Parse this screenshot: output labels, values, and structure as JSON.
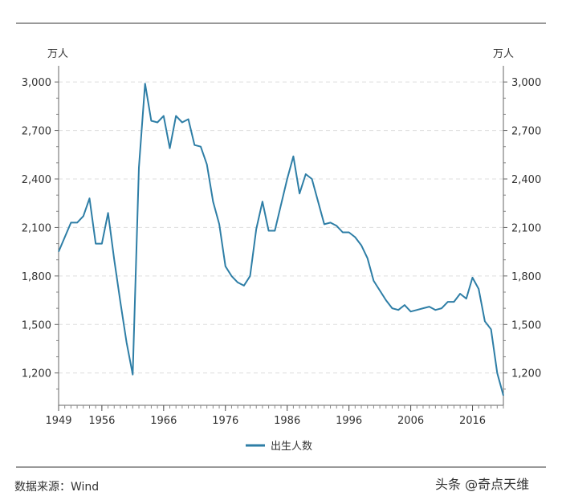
{
  "chart_data": {
    "type": "line",
    "unit_left": "万人",
    "unit_right": "万人",
    "legend": "出生人数",
    "series_color": "#2e7ea6",
    "ylim": [
      1000,
      3100
    ],
    "yticks": [
      1200,
      1500,
      1800,
      2100,
      2400,
      2700,
      3000
    ],
    "ytick_labels": [
      "1,200",
      "1,500",
      "1,800",
      "2,100",
      "2,400",
      "2,700",
      "3,000"
    ],
    "xlim": [
      1949,
      2021
    ],
    "xticks": [
      1949,
      1956,
      1966,
      1976,
      1986,
      1996,
      2006,
      2016
    ],
    "xtick_labels": [
      "1949",
      "1956",
      "1966",
      "1976",
      "1986",
      "1996",
      "2006",
      "2016"
    ],
    "series": [
      {
        "name": "出生人数",
        "x": [
          1949,
          1950,
          1951,
          1952,
          1953,
          1954,
          1955,
          1956,
          1957,
          1958,
          1959,
          1960,
          1961,
          1962,
          1963,
          1964,
          1965,
          1966,
          1967,
          1968,
          1969,
          1970,
          1971,
          1972,
          1973,
          1974,
          1975,
          1976,
          1977,
          1978,
          1979,
          1980,
          1981,
          1982,
          1983,
          1984,
          1985,
          1986,
          1987,
          1988,
          1989,
          1990,
          1991,
          1992,
          1993,
          1994,
          1995,
          1996,
          1997,
          1998,
          1999,
          2000,
          2001,
          2002,
          2003,
          2004,
          2005,
          2006,
          2007,
          2008,
          2009,
          2010,
          2011,
          2012,
          2013,
          2014,
          2015,
          2016,
          2017,
          2018,
          2019,
          2020,
          2021
        ],
        "values": [
          1950,
          2040,
          2130,
          2130,
          2170,
          2280,
          2000,
          2000,
          2190,
          1900,
          1640,
          1390,
          1190,
          2470,
          2990,
          2760,
          2750,
          2790,
          2590,
          2790,
          2750,
          2770,
          2610,
          2600,
          2490,
          2260,
          2120,
          1860,
          1800,
          1760,
          1740,
          1800,
          2090,
          2260,
          2080,
          2080,
          2240,
          2400,
          2540,
          2310,
          2430,
          2400,
          2260,
          2120,
          2130,
          2110,
          2070,
          2070,
          2040,
          1990,
          1910,
          1770,
          1710,
          1650,
          1600,
          1590,
          1620,
          1580,
          1590,
          1600,
          1610,
          1590,
          1600,
          1640,
          1640,
          1690,
          1660,
          1790,
          1720,
          1520,
          1470,
          1200,
          1060
        ]
      }
    ],
    "source": "数据来源：Wind",
    "watermark": "头条 @奇点天维"
  }
}
